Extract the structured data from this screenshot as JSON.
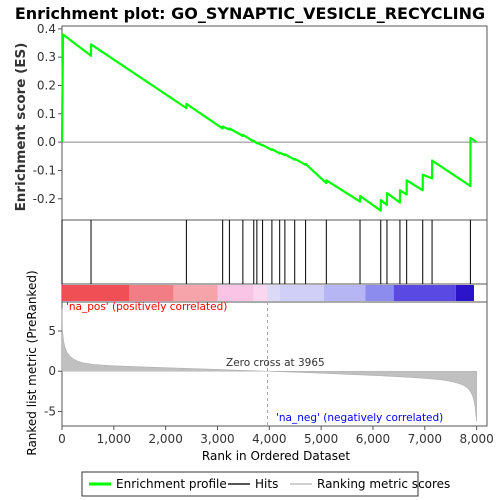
{
  "chart_data": {
    "type": "line",
    "title": "Enrichment plot: GO_SYNAPTIC_VESICLE_RECYCLING",
    "ylabel_top": "Enrichment score (ES)",
    "ylabel_bottom": "Ranked list metric (PreRanked)",
    "xlabel": "Rank in Ordered Dataset",
    "xlim": [
      0,
      8200
    ],
    "es_ylim": [
      -0.275,
      0.41
    ],
    "es_yticks": [
      0.4,
      0.3,
      0.2,
      0.1,
      0.0,
      -0.1,
      -0.2
    ],
    "es_ytick_labels": [
      "0.4",
      "0.3",
      "0.2",
      "0.1",
      "0.0",
      "-0.1",
      "-0.2"
    ],
    "metric_ylim": [
      -6.8,
      8.6
    ],
    "metric_yticks": [
      5,
      0,
      -5
    ],
    "metric_ytick_labels": [
      "5",
      "0",
      "-5"
    ],
    "xticks": [
      0,
      1000,
      2000,
      3000,
      4000,
      5000,
      6000,
      7000,
      8000
    ],
    "xtick_labels": [
      "0",
      "1,000",
      "2,000",
      "3,000",
      "4,000",
      "5,000",
      "6,000",
      "7,000",
      "8,000"
    ],
    "hits": [
      0,
      560,
      2400,
      3100,
      3230,
      3490,
      3700,
      3760,
      3870,
      4050,
      4200,
      4300,
      4490,
      4700,
      5100,
      5750,
      6150,
      6270,
      6520,
      6650,
      6960,
      7140,
      7880
    ],
    "es_curve": {
      "x": [
        0,
        20,
        560,
        561,
        2400,
        2401,
        3100,
        3101,
        3230,
        3231,
        3490,
        3491,
        3700,
        3701,
        3760,
        3761,
        3870,
        3871,
        4050,
        4051,
        4200,
        4201,
        4300,
        4301,
        4490,
        4491,
        4700,
        4701,
        5100,
        5101,
        5750,
        5751,
        6150,
        6151,
        6270,
        6271,
        6520,
        6521,
        6650,
        6651,
        6960,
        6961,
        7140,
        7141,
        7880,
        7881,
        8000
      ],
      "y": [
        0.0,
        0.38,
        0.305,
        0.345,
        0.12,
        0.135,
        0.048,
        0.055,
        0.044,
        0.048,
        0.022,
        0.026,
        0.002,
        0.005,
        -0.004,
        -0.002,
        -0.012,
        -0.01,
        -0.028,
        -0.025,
        -0.04,
        -0.037,
        -0.046,
        -0.043,
        -0.062,
        -0.059,
        -0.08,
        -0.077,
        -0.145,
        -0.135,
        -0.21,
        -0.19,
        -0.242,
        -0.205,
        -0.222,
        -0.18,
        -0.213,
        -0.17,
        -0.185,
        -0.135,
        -0.17,
        -0.115,
        -0.128,
        -0.065,
        -0.155,
        0.015,
        0.0
      ]
    },
    "metric_curve": {
      "x": [
        0,
        10,
        30,
        60,
        100,
        150,
        200,
        300,
        400,
        600,
        800,
        1000,
        1500,
        2000,
        2500,
        3000,
        3500,
        3965,
        4500,
        5000,
        5500,
        6000,
        6500,
        7000,
        7300,
        7500,
        7650,
        7750,
        7820,
        7870,
        7900,
        7930,
        7950,
        7970,
        7990,
        8000
      ],
      "y": [
        7.8,
        5.0,
        3.8,
        2.9,
        2.3,
        1.9,
        1.6,
        1.25,
        1.05,
        0.85,
        0.75,
        0.68,
        0.55,
        0.44,
        0.34,
        0.23,
        0.1,
        0.0,
        -0.12,
        -0.25,
        -0.38,
        -0.52,
        -0.68,
        -0.88,
        -1.05,
        -1.25,
        -1.5,
        -1.75,
        -2.05,
        -2.4,
        -2.75,
        -3.2,
        -3.7,
        -4.4,
        -5.6,
        -6.2
      ]
    },
    "zero_cross": 3965,
    "zero_cross_label": "Zero cross at 3965",
    "pos_label": "'na_pos' (positively correlated)",
    "neg_label": "'na_neg' (negatively correlated)",
    "colorbar_segments": [
      {
        "end": 1300,
        "color": "#ef4f55"
      },
      {
        "end": 2150,
        "color": "#f37d84"
      },
      {
        "end": 3000,
        "color": "#f6a4aa"
      },
      {
        "end": 3700,
        "color": "#fac4e6"
      },
      {
        "end": 3965,
        "color": "#fbd6ef"
      },
      {
        "end": 4200,
        "color": "#dadaf7"
      },
      {
        "end": 5050,
        "color": "#cfcff7"
      },
      {
        "end": 5850,
        "color": "#b6b6f4"
      },
      {
        "end": 6400,
        "color": "#8c8cef"
      },
      {
        "end": 7600,
        "color": "#5a49e3"
      },
      {
        "end": 7950,
        "color": "#2b14c9"
      },
      {
        "end": 8000,
        "color": "#ffffff"
      }
    ],
    "legend": [
      {
        "label": "Enrichment profile",
        "color": "#00ff00"
      },
      {
        "label": "Hits",
        "color": "#555555"
      },
      {
        "label": "Ranking metric scores",
        "color": "#d0d0d0"
      }
    ],
    "colors": {
      "es_line": "#00ff00",
      "hit_line": "#000000",
      "metric_fill": "#c0c0c0",
      "zero_line": "#aaaaaa",
      "pos_text": "#ff0000",
      "neg_text": "#0000ff",
      "frame": "#555555"
    }
  }
}
